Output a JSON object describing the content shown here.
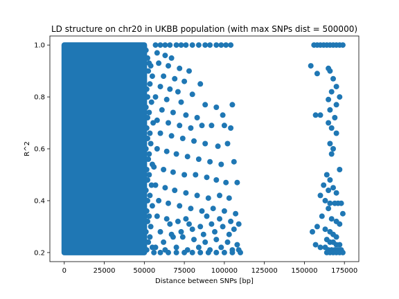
{
  "chart_data": {
    "type": "scatter",
    "title": "LD structure on chr20 in UKBB population (with max SNPs dist = 500000)",
    "xlabel": "Distance between SNPs [bp]",
    "ylabel": "R^2",
    "xlim": [
      -9000,
      184000
    ],
    "ylim": [
      0.165,
      1.035
    ],
    "x_ticks": [
      0,
      25000,
      50000,
      75000,
      100000,
      125000,
      150000,
      175000
    ],
    "y_ticks": [
      0.2,
      0.4,
      0.6,
      0.8,
      1.0
    ],
    "grid": false,
    "marker_color": "#1f77b4",
    "dense_region": {
      "x": [
        0,
        50000
      ],
      "y": [
        0.2,
        1.0
      ]
    },
    "points": [
      [
        51000,
        0.98
      ],
      [
        52000,
        0.95
      ],
      [
        53000,
        0.93
      ],
      [
        54000,
        0.92
      ],
      [
        52500,
        0.9
      ],
      [
        55000,
        0.88
      ],
      [
        53500,
        0.85
      ],
      [
        51500,
        0.83
      ],
      [
        52000,
        0.8
      ],
      [
        54500,
        0.78
      ],
      [
        51000,
        0.76
      ],
      [
        53000,
        0.74
      ],
      [
        52000,
        0.72
      ],
      [
        55500,
        0.7
      ],
      [
        51500,
        0.68
      ],
      [
        53500,
        0.66
      ],
      [
        52000,
        0.64
      ],
      [
        54000,
        0.62
      ],
      [
        51000,
        0.6
      ],
      [
        53000,
        0.58
      ],
      [
        52500,
        0.56
      ],
      [
        55000,
        0.54
      ],
      [
        51500,
        0.52
      ],
      [
        53000,
        0.5
      ],
      [
        52000,
        0.48
      ],
      [
        54500,
        0.46
      ],
      [
        51000,
        0.44
      ],
      [
        53500,
        0.42
      ],
      [
        52000,
        0.4
      ],
      [
        55000,
        0.38
      ],
      [
        51500,
        0.36
      ],
      [
        53000,
        0.34
      ],
      [
        52000,
        0.32
      ],
      [
        54000,
        0.3
      ],
      [
        51000,
        0.28
      ],
      [
        53500,
        0.26
      ],
      [
        52500,
        0.24
      ],
      [
        55000,
        0.22
      ],
      [
        51500,
        0.21
      ],
      [
        57000,
        1.0
      ],
      [
        60000,
        1.0
      ],
      [
        63000,
        1.0
      ],
      [
        66000,
        1.0
      ],
      [
        70000,
        1.0
      ],
      [
        73000,
        1.0
      ],
      [
        76000,
        1.0
      ],
      [
        80000,
        1.0
      ],
      [
        84000,
        1.0
      ],
      [
        88000,
        1.0
      ],
      [
        91000,
        1.0
      ],
      [
        95000,
        1.0
      ],
      [
        98000,
        1.0
      ],
      [
        101000,
        1.0
      ],
      [
        104000,
        1.0
      ],
      [
        58000,
        0.97
      ],
      [
        63000,
        0.96
      ],
      [
        67000,
        0.95
      ],
      [
        59000,
        0.93
      ],
      [
        65000,
        0.92
      ],
      [
        72000,
        0.91
      ],
      [
        78000,
        0.9
      ],
      [
        62000,
        0.88
      ],
      [
        69000,
        0.87
      ],
      [
        75000,
        0.86
      ],
      [
        85000,
        0.85
      ],
      [
        60000,
        0.84
      ],
      [
        66000,
        0.83
      ],
      [
        71000,
        0.82
      ],
      [
        80000,
        0.81
      ],
      [
        57000,
        0.8
      ],
      [
        64000,
        0.79
      ],
      [
        73000,
        0.78
      ],
      [
        88000,
        0.77
      ],
      [
        95000,
        0.76
      ],
      [
        105000,
        0.77
      ],
      [
        61000,
        0.75
      ],
      [
        68000,
        0.74
      ],
      [
        76000,
        0.73
      ],
      [
        83000,
        0.72
      ],
      [
        99000,
        0.73
      ],
      [
        58000,
        0.71
      ],
      [
        65000,
        0.7
      ],
      [
        72000,
        0.69
      ],
      [
        79000,
        0.68
      ],
      [
        86000,
        0.69
      ],
      [
        92000,
        0.69
      ],
      [
        100000,
        0.69
      ],
      [
        104000,
        0.68
      ],
      [
        60000,
        0.66
      ],
      [
        67000,
        0.65
      ],
      [
        74000,
        0.64
      ],
      [
        81000,
        0.63
      ],
      [
        88000,
        0.62
      ],
      [
        96000,
        0.61
      ],
      [
        102000,
        0.62
      ],
      [
        58000,
        0.6
      ],
      [
        64000,
        0.59
      ],
      [
        70000,
        0.58
      ],
      [
        77000,
        0.57
      ],
      [
        84000,
        0.56
      ],
      [
        91000,
        0.55
      ],
      [
        98000,
        0.54
      ],
      [
        106000,
        0.55
      ],
      [
        56000,
        0.53
      ],
      [
        62000,
        0.52
      ],
      [
        68000,
        0.51
      ],
      [
        75000,
        0.5
      ],
      [
        82000,
        0.5
      ],
      [
        89000,
        0.49
      ],
      [
        95000,
        0.48
      ],
      [
        101000,
        0.47
      ],
      [
        108000,
        0.47
      ],
      [
        57000,
        0.46
      ],
      [
        63000,
        0.45
      ],
      [
        69000,
        0.44
      ],
      [
        76000,
        0.43
      ],
      [
        83000,
        0.42
      ],
      [
        90000,
        0.41
      ],
      [
        97000,
        0.42
      ],
      [
        103000,
        0.41
      ],
      [
        59000,
        0.4
      ],
      [
        65000,
        0.39
      ],
      [
        72000,
        0.38
      ],
      [
        79000,
        0.37
      ],
      [
        86000,
        0.36
      ],
      [
        93000,
        0.37
      ],
      [
        100000,
        0.36
      ],
      [
        107000,
        0.35
      ],
      [
        58000,
        0.34
      ],
      [
        64000,
        0.33
      ],
      [
        71000,
        0.32
      ],
      [
        78000,
        0.31
      ],
      [
        85000,
        0.3
      ],
      [
        92000,
        0.31
      ],
      [
        99000,
        0.3
      ],
      [
        106000,
        0.29
      ],
      [
        60000,
        0.28
      ],
      [
        67000,
        0.27
      ],
      [
        74000,
        0.26
      ],
      [
        81000,
        0.25
      ],
      [
        88000,
        0.24
      ],
      [
        95000,
        0.25
      ],
      [
        102000,
        0.24
      ],
      [
        108000,
        0.23
      ],
      [
        57000,
        0.22
      ],
      [
        63000,
        0.21
      ],
      [
        70000,
        0.22
      ],
      [
        77000,
        0.21
      ],
      [
        84000,
        0.22
      ],
      [
        91000,
        0.21
      ],
      [
        98000,
        0.22
      ],
      [
        105000,
        0.21
      ],
      [
        109000,
        0.21
      ],
      [
        56000,
        0.2
      ],
      [
        60000,
        0.2
      ],
      [
        65000,
        0.2
      ],
      [
        70000,
        0.2
      ],
      [
        75000,
        0.2
      ],
      [
        80000,
        0.2
      ],
      [
        85000,
        0.2
      ],
      [
        90000,
        0.2
      ],
      [
        95000,
        0.2
      ],
      [
        100000,
        0.2
      ],
      [
        105000,
        0.2
      ],
      [
        110000,
        0.2
      ],
      [
        62000,
        0.24
      ],
      [
        68000,
        0.26
      ],
      [
        73000,
        0.28
      ],
      [
        80000,
        0.29
      ],
      [
        87000,
        0.27
      ],
      [
        94000,
        0.28
      ],
      [
        103000,
        0.27
      ],
      [
        66000,
        0.31
      ],
      [
        76000,
        0.33
      ],
      [
        89000,
        0.34
      ],
      [
        97000,
        0.33
      ],
      [
        104000,
        0.32
      ],
      [
        109000,
        0.31
      ],
      [
        156000,
        1.0
      ],
      [
        158000,
        1.0
      ],
      [
        160000,
        1.0
      ],
      [
        162000,
        1.0
      ],
      [
        164000,
        1.0
      ],
      [
        166000,
        1.0
      ],
      [
        168000,
        1.0
      ],
      [
        170000,
        1.0
      ],
      [
        172000,
        1.0
      ],
      [
        174000,
        1.0
      ],
      [
        154000,
        0.92
      ],
      [
        158000,
        0.89
      ],
      [
        165000,
        0.91
      ],
      [
        166000,
        0.9
      ],
      [
        168000,
        0.87
      ],
      [
        170000,
        0.84
      ],
      [
        167000,
        0.82
      ],
      [
        172000,
        0.8
      ],
      [
        165000,
        0.79
      ],
      [
        170000,
        0.77
      ],
      [
        166000,
        0.75
      ],
      [
        157000,
        0.73
      ],
      [
        160000,
        0.73
      ],
      [
        169000,
        0.72
      ],
      [
        165000,
        0.7
      ],
      [
        167000,
        0.68
      ],
      [
        170000,
        0.66
      ],
      [
        166000,
        0.62
      ],
      [
        168000,
        0.6
      ],
      [
        167000,
        0.58
      ],
      [
        172000,
        0.52
      ],
      [
        164000,
        0.5
      ],
      [
        166000,
        0.48
      ],
      [
        162000,
        0.46
      ],
      [
        168000,
        0.45
      ],
      [
        165000,
        0.44
      ],
      [
        170000,
        0.43
      ],
      [
        160000,
        0.42
      ],
      [
        163000,
        0.4
      ],
      [
        166000,
        0.39
      ],
      [
        169000,
        0.39
      ],
      [
        171000,
        0.39
      ],
      [
        173000,
        0.39
      ],
      [
        165000,
        0.37
      ],
      [
        174000,
        0.35
      ],
      [
        161000,
        0.34
      ],
      [
        167000,
        0.33
      ],
      [
        170000,
        0.32
      ],
      [
        172000,
        0.31
      ],
      [
        158000,
        0.3
      ],
      [
        163000,
        0.29
      ],
      [
        166000,
        0.28
      ],
      [
        155000,
        0.28
      ],
      [
        168000,
        0.27
      ],
      [
        170000,
        0.26
      ],
      [
        164000,
        0.25
      ],
      [
        166000,
        0.24
      ],
      [
        168000,
        0.24
      ],
      [
        170000,
        0.23
      ],
      [
        172000,
        0.23
      ],
      [
        157000,
        0.23
      ],
      [
        160000,
        0.22
      ],
      [
        163000,
        0.22
      ],
      [
        165000,
        0.21
      ],
      [
        167000,
        0.21
      ],
      [
        169000,
        0.21
      ],
      [
        171000,
        0.21
      ],
      [
        173000,
        0.21
      ],
      [
        164000,
        0.2
      ],
      [
        166000,
        0.2
      ],
      [
        168000,
        0.2
      ],
      [
        170000,
        0.2
      ],
      [
        172000,
        0.2
      ],
      [
        174000,
        0.2
      ]
    ]
  }
}
